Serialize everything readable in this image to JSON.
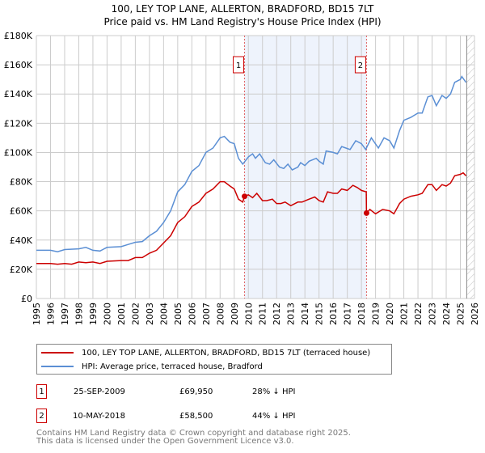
{
  "title_line1": "100, LEY TOP LANE, ALLERTON, BRADFORD, BD15 7LT",
  "title_line2": "Price paid vs. HM Land Registry's House Price Index (HPI)",
  "chart_data": {
    "type": "line",
    "title": "100, LEY TOP LANE, ALLERTON, BRADFORD, BD15 7LT — Price paid vs. HM Land Registry's House Price Index (HPI)",
    "xlim": [
      1995,
      2026
    ],
    "ylim": [
      0,
      180000
    ],
    "x_ticks": [
      "1995",
      "1996",
      "1997",
      "1998",
      "1999",
      "2000",
      "2001",
      "2002",
      "2003",
      "2004",
      "2005",
      "2006",
      "2007",
      "2008",
      "2009",
      "2010",
      "2011",
      "2012",
      "2013",
      "2014",
      "2015",
      "2016",
      "2017",
      "2018",
      "2019",
      "2020",
      "2021",
      "2022",
      "2023",
      "2024",
      "2025",
      "2026"
    ],
    "y_ticks": [
      {
        "v": 0,
        "label": "£0"
      },
      {
        "v": 20000,
        "label": "£20K"
      },
      {
        "v": 40000,
        "label": "£40K"
      },
      {
        "v": 60000,
        "label": "£60K"
      },
      {
        "v": 80000,
        "label": "£80K"
      },
      {
        "v": 100000,
        "label": "£100K"
      },
      {
        "v": 120000,
        "label": "£120K"
      },
      {
        "v": 140000,
        "label": "£140K"
      },
      {
        "v": 160000,
        "label": "£160K"
      },
      {
        "v": 180000,
        "label": "£180K"
      }
    ],
    "grid": true,
    "shaded_range": [
      2009.73,
      2018.36
    ],
    "forecast_hatch_from": 2025.45,
    "series": [
      {
        "name": "100, LEY TOP LANE, ALLERTON, BRADFORD, BD15 7LT (terraced house)",
        "color": "#cc0000",
        "x": [
          1995,
          1996,
          1996.5,
          1997,
          1997.5,
          1998,
          1998.5,
          1999,
          1999.5,
          2000,
          2001,
          2001.5,
          2002,
          2002.5,
          2003,
          2003.5,
          2004,
          2004.5,
          2005,
          2005.5,
          2006,
          2006.5,
          2007,
          2007.5,
          2008,
          2008.3,
          2008.7,
          2009,
          2009.3,
          2009.6,
          2009.73,
          2010,
          2010.3,
          2010.6,
          2011,
          2011.3,
          2011.7,
          2012,
          2012.3,
          2012.6,
          2013,
          2013.5,
          2013.8,
          2014.3,
          2014.7,
          2015,
          2015.3,
          2015.6,
          2016,
          2016.3,
          2016.6,
          2017,
          2017.4,
          2017.7,
          2018,
          2018.34,
          2018.36,
          2018.6,
          2019,
          2019.5,
          2020,
          2020.3,
          2020.7,
          2021,
          2021.5,
          2022,
          2022.3,
          2022.7,
          2023,
          2023.3,
          2023.7,
          2024,
          2024.3,
          2024.6,
          2025,
          2025.2,
          2025.4
        ],
        "y": [
          24000,
          24000,
          23500,
          24000,
          23500,
          25000,
          24500,
          25000,
          24000,
          25500,
          26000,
          26000,
          28000,
          28000,
          31000,
          33000,
          38000,
          43000,
          52000,
          56000,
          63000,
          66000,
          72000,
          75000,
          80000,
          80000,
          77000,
          75000,
          68000,
          66000,
          69950,
          71000,
          69000,
          72000,
          67000,
          67000,
          68000,
          65000,
          65000,
          66000,
          63500,
          66000,
          66000,
          68000,
          69500,
          67000,
          66000,
          73000,
          72000,
          72000,
          75000,
          74000,
          77500,
          76000,
          74000,
          73000,
          58500,
          61000,
          58000,
          61000,
          60000,
          58000,
          65000,
          68000,
          70000,
          71000,
          72000,
          78000,
          78000,
          74000,
          78000,
          77000,
          79000,
          84000,
          85000,
          86000,
          84000
        ]
      },
      {
        "name": "HPI: Average price, terraced house, Bradford",
        "color": "#5b8fd4",
        "x": [
          1995,
          1996,
          1996.5,
          1997,
          1998,
          1998.5,
          1999,
          1999.5,
          2000,
          2001,
          2001.5,
          2002,
          2002.5,
          2003,
          2003.5,
          2004,
          2004.5,
          2005,
          2005.5,
          2006,
          2006.5,
          2007,
          2007.5,
          2008,
          2008.3,
          2008.7,
          2009,
          2009.3,
          2009.6,
          2010,
          2010.3,
          2010.5,
          2010.8,
          2011.2,
          2011.5,
          2011.8,
          2012.2,
          2012.5,
          2012.8,
          2013.1,
          2013.5,
          2013.7,
          2014,
          2014.3,
          2014.8,
          2015,
          2015.3,
          2015.5,
          2016,
          2016.3,
          2016.6,
          2016.9,
          2017.2,
          2017.6,
          2018,
          2018.3,
          2018.7,
          2019.2,
          2019.6,
          2020,
          2020.3,
          2020.7,
          2021,
          2021.5,
          2022,
          2022.3,
          2022.7,
          2023,
          2023.3,
          2023.7,
          2024,
          2024.3,
          2024.6,
          2025,
          2025.1,
          2025.4
        ],
        "y": [
          33000,
          33000,
          32000,
          33500,
          34000,
          35000,
          33000,
          32500,
          35000,
          35500,
          37000,
          38500,
          39000,
          43000,
          46000,
          52000,
          60000,
          73000,
          78000,
          87000,
          91000,
          100000,
          103000,
          110000,
          111000,
          107000,
          106000,
          96000,
          92000,
          97000,
          99000,
          96000,
          99000,
          93000,
          92000,
          95000,
          90000,
          89000,
          92000,
          88000,
          90000,
          93000,
          91000,
          94000,
          96000,
          94000,
          92000,
          101000,
          100000,
          99000,
          104000,
          103000,
          102000,
          108000,
          106000,
          102000,
          110000,
          103000,
          110000,
          108000,
          103000,
          115000,
          122000,
          124000,
          127000,
          127000,
          138000,
          139000,
          132000,
          139000,
          137000,
          140000,
          148000,
          150000,
          152000,
          148000
        ]
      }
    ],
    "annotations": [
      {
        "label": "1",
        "x": 2009.73,
        "y": 69950
      },
      {
        "label": "2",
        "x": 2018.36,
        "y": 58500
      }
    ]
  },
  "legend": [
    {
      "label": "100, LEY TOP LANE, ALLERTON, BRADFORD, BD15 7LT (terraced house)",
      "color": "#cc0000"
    },
    {
      "label": "HPI: Average price, terraced house, Bradford",
      "color": "#5b8fd4"
    }
  ],
  "sales": [
    {
      "num": "1",
      "date": "25-SEP-2009",
      "price": "£69,950",
      "hpi": "28% ↓ HPI"
    },
    {
      "num": "2",
      "date": "10-MAY-2018",
      "price": "£58,500",
      "hpi": "44% ↓ HPI"
    }
  ],
  "footer_line1": "Contains HM Land Registry data © Crown copyright and database right 2025.",
  "footer_line2": "This data is licensed under the Open Government Licence v3.0."
}
